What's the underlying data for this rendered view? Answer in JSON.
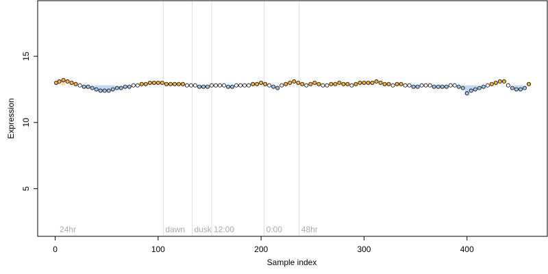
{
  "chart_data": {
    "type": "scatter",
    "title": "",
    "xlabel": "Sample index",
    "ylabel": "Expression",
    "xlim": [
      -17,
      478
    ],
    "ylim": [
      1.4,
      19.2
    ],
    "x_ticks": [
      0,
      100,
      200,
      300,
      400
    ],
    "y_ticks": [
      5,
      10,
      15
    ],
    "grid": false,
    "annotation_color": "#aaaaaa",
    "vertical_lines": [
      {
        "x": 105,
        "label": "dawn"
      },
      {
        "x": 133,
        "label": "dusk"
      },
      {
        "x": 152,
        "label": "12:00"
      },
      {
        "x": 203,
        "label": "0:00"
      },
      {
        "x": 237,
        "label": "48hr"
      }
    ],
    "corner_label": {
      "x": 3,
      "label": "24hr"
    },
    "colors": {
      "point_outline": "#000000",
      "high_fill": "#f5b041",
      "low_fill": "#9ec1e8",
      "mid_fill": "#ffffff",
      "above_band": "#f5c98a",
      "below_band": "#a9c6ec"
    },
    "series": [
      {
        "x": [
          1,
          4,
          8,
          12,
          16,
          20,
          24,
          28,
          32,
          36,
          40,
          44,
          48,
          52,
          56,
          60,
          64,
          68,
          72,
          76,
          80,
          84,
          88,
          92,
          96,
          100,
          104,
          108,
          112,
          116,
          120,
          124,
          128,
          132,
          136,
          140,
          144,
          148,
          152,
          156,
          160,
          164,
          168,
          172,
          176,
          180,
          184,
          188,
          192,
          196,
          200,
          204,
          208,
          212,
          216,
          220,
          224,
          228,
          232,
          236,
          240,
          244,
          248,
          252,
          256,
          260,
          264,
          268,
          272,
          276,
          280,
          284,
          288,
          292,
          296,
          300,
          304,
          308,
          312,
          316,
          320,
          324,
          328,
          332,
          336,
          340,
          344,
          348,
          352,
          356,
          360,
          364,
          368,
          372,
          376,
          380,
          384,
          388,
          392,
          396,
          400,
          404,
          408,
          412,
          416,
          420,
          424,
          428,
          432,
          436,
          440,
          444,
          448,
          452,
          456,
          460
        ],
        "y": [
          13.0,
          13.1,
          13.2,
          13.1,
          13.0,
          12.9,
          12.8,
          12.7,
          12.7,
          12.6,
          12.5,
          12.4,
          12.4,
          12.4,
          12.5,
          12.6,
          12.6,
          12.7,
          12.7,
          12.8,
          12.8,
          12.9,
          12.9,
          13.0,
          13.0,
          13.0,
          13.0,
          12.9,
          12.9,
          12.9,
          12.9,
          12.9,
          12.8,
          12.8,
          12.8,
          12.7,
          12.7,
          12.7,
          12.8,
          12.8,
          12.8,
          12.8,
          12.7,
          12.7,
          12.8,
          12.8,
          12.8,
          12.8,
          12.9,
          12.9,
          13.0,
          12.9,
          12.8,
          12.7,
          12.6,
          12.8,
          12.9,
          13.0,
          13.1,
          13.0,
          12.9,
          12.8,
          12.9,
          13.0,
          12.9,
          12.8,
          12.8,
          12.9,
          12.9,
          13.0,
          12.9,
          12.9,
          12.8,
          12.9,
          13.0,
          13.0,
          13.0,
          13.0,
          13.1,
          13.0,
          12.9,
          12.9,
          12.8,
          12.9,
          12.9,
          12.8,
          12.8,
          12.7,
          12.7,
          12.8,
          12.8,
          12.8,
          12.7,
          12.7,
          12.7,
          12.7,
          12.8,
          12.8,
          12.7,
          12.6,
          12.2,
          12.4,
          12.5,
          12.6,
          12.7,
          12.8,
          12.9,
          13.0,
          13.1,
          13.1,
          12.8,
          12.6,
          12.5,
          12.5,
          12.6,
          12.9
        ]
      }
    ]
  }
}
